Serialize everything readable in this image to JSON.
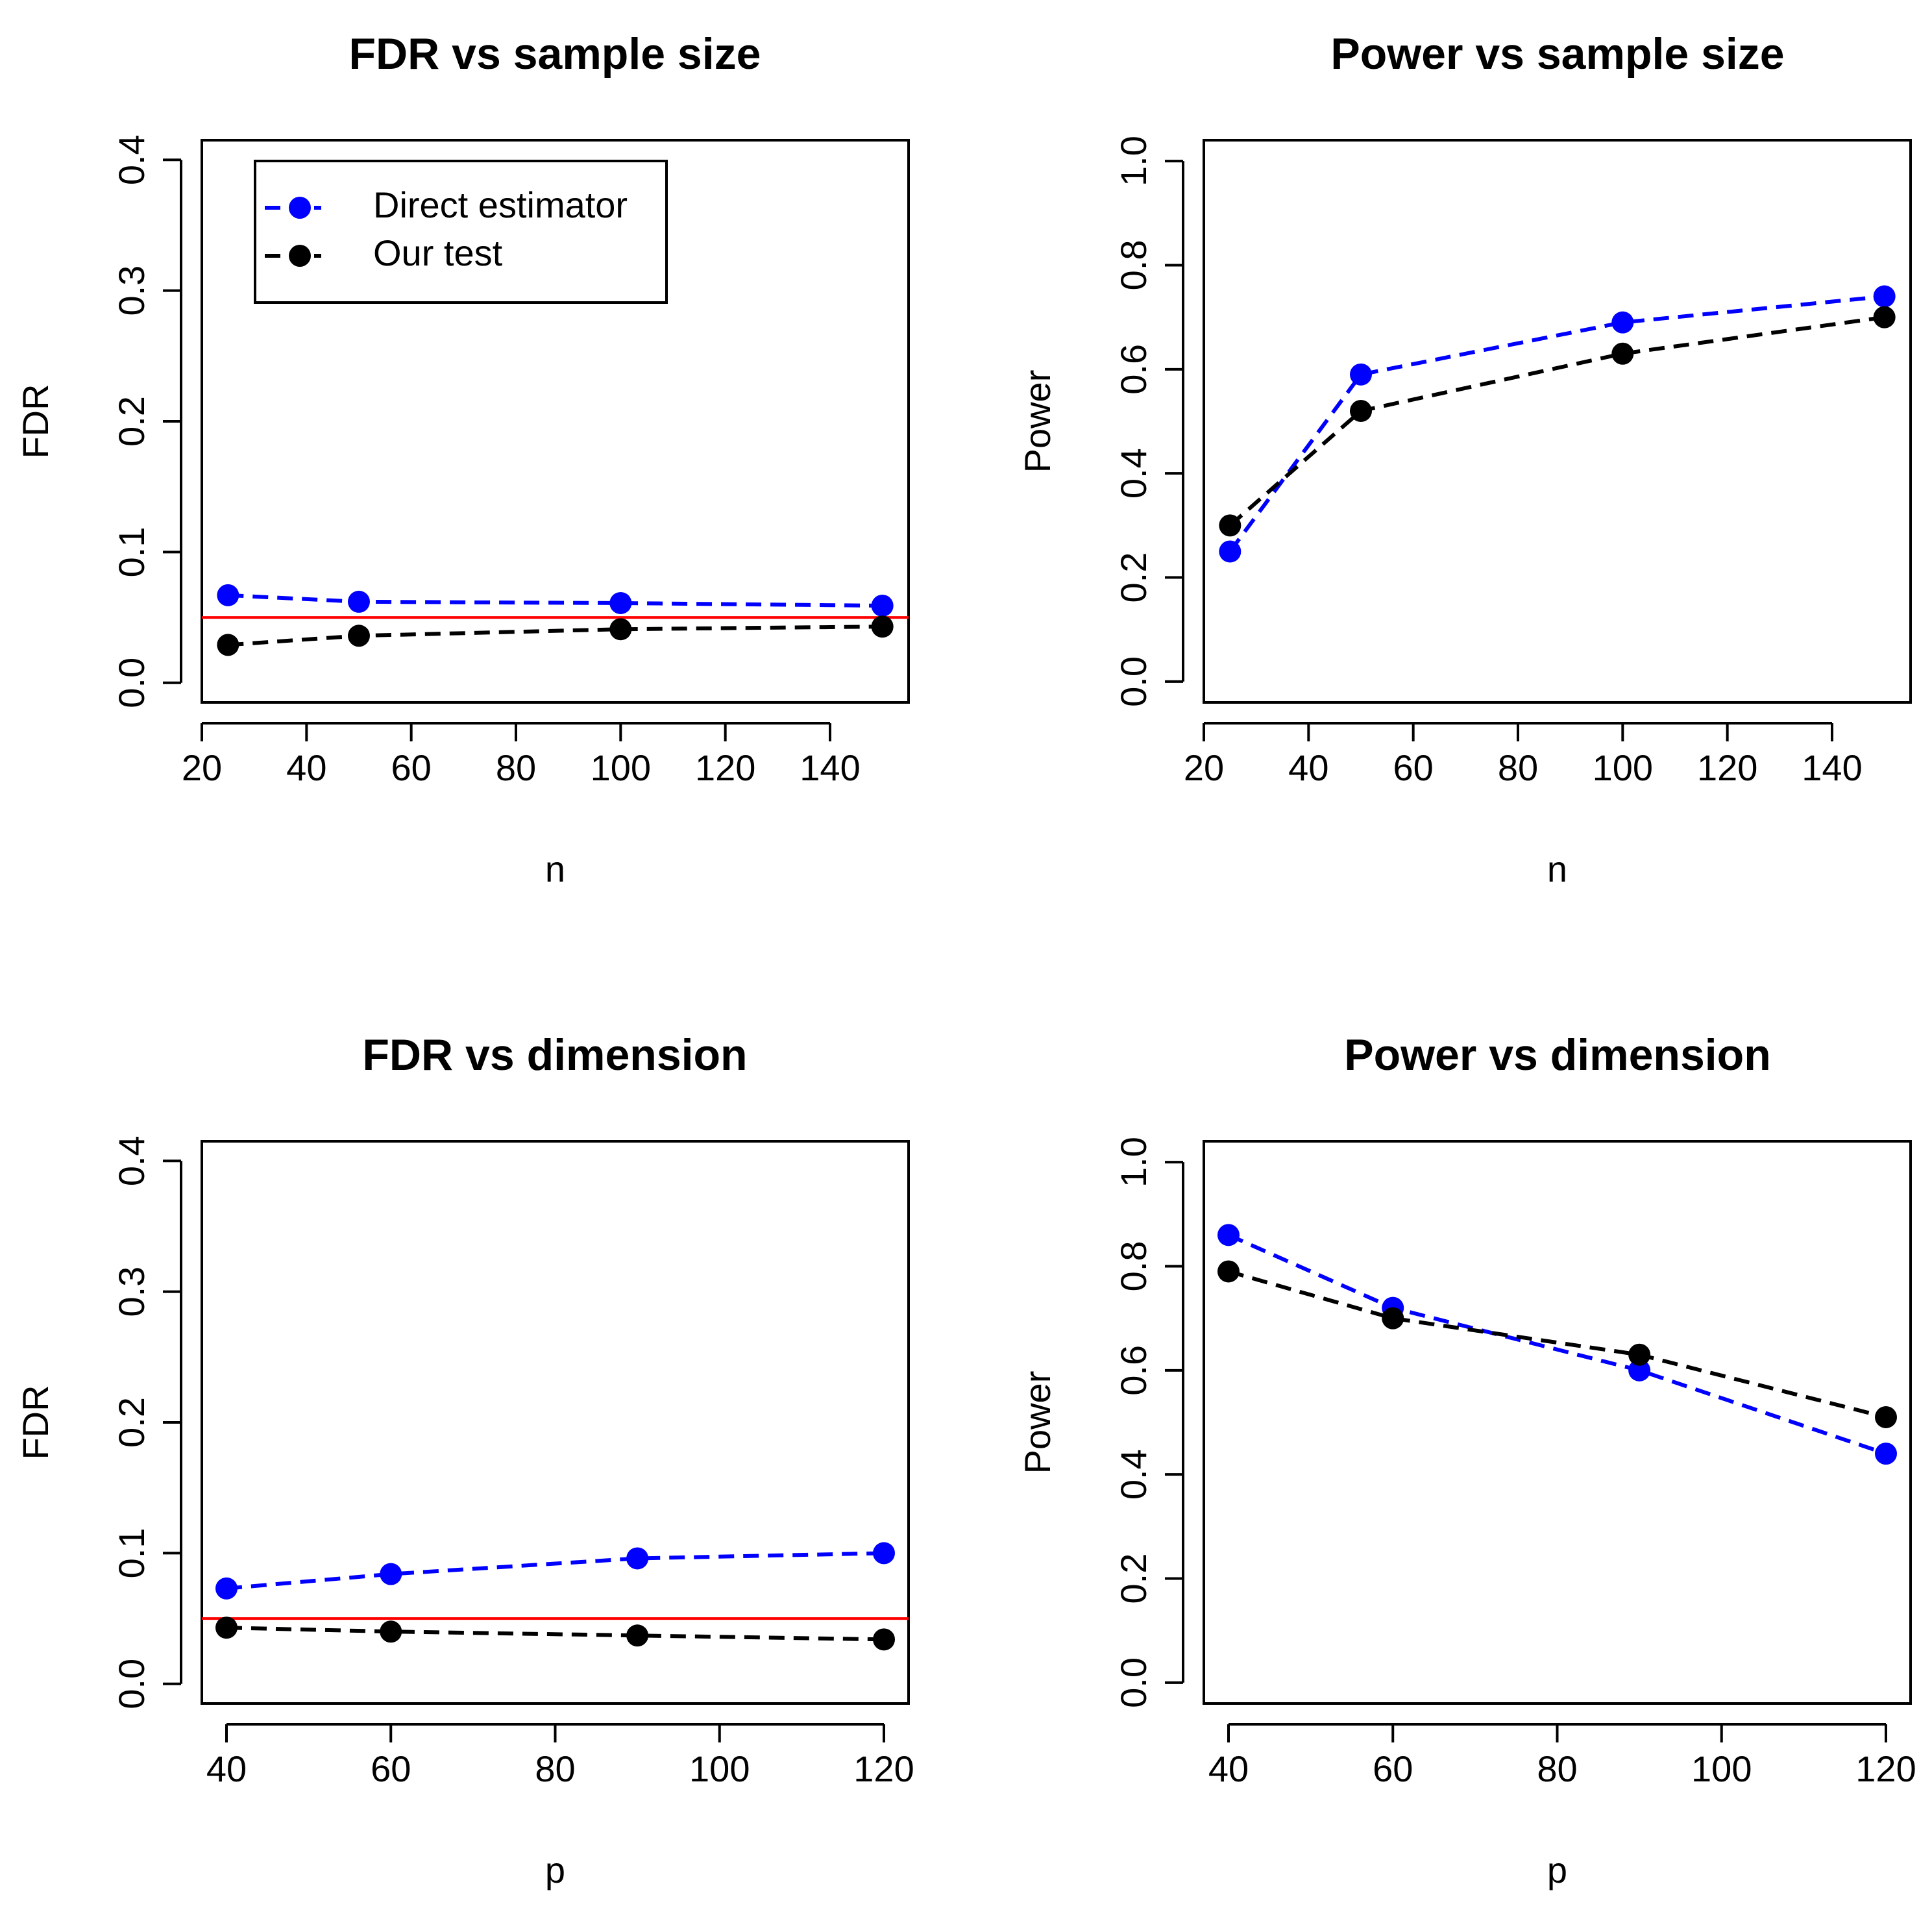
{
  "chart_data": [
    {
      "type": "line",
      "title": "FDR vs sample size",
      "xlabel": "n",
      "ylabel": "FDR",
      "xticks": [
        20,
        40,
        60,
        80,
        100,
        120,
        140
      ],
      "yticks": [
        0.0,
        0.1,
        0.2,
        0.3,
        0.4
      ],
      "yticklabels": [
        "0.0",
        "0.1",
        "0.2",
        "0.3",
        "0.4"
      ],
      "xlim": [
        20,
        155
      ],
      "ylim": [
        -0.015,
        0.415
      ],
      "x": [
        25,
        50,
        100,
        150
      ],
      "series": [
        {
          "name": "Direct estimator",
          "color": "#0000ff",
          "values": [
            0.067,
            0.062,
            0.061,
            0.059
          ]
        },
        {
          "name": "Our test",
          "color": "#000000",
          "values": [
            0.029,
            0.036,
            0.041,
            0.043
          ]
        }
      ],
      "reference_line": {
        "y": 0.05,
        "color": "#ff0000"
      },
      "legend": {
        "position": "top-left",
        "entries": [
          "Direct estimator",
          "Our test"
        ]
      },
      "grid": false
    },
    {
      "type": "line",
      "title": "Power vs sample size",
      "xlabel": "n",
      "ylabel": "Power",
      "xticks": [
        20,
        40,
        60,
        80,
        100,
        120,
        140
      ],
      "yticks": [
        0.0,
        0.2,
        0.4,
        0.6,
        0.8,
        1.0
      ],
      "yticklabels": [
        "0.0",
        "0.2",
        "0.4",
        "0.6",
        "0.8",
        "1.0"
      ],
      "xlim": [
        20,
        155
      ],
      "ylim": [
        -0.04,
        1.04
      ],
      "x": [
        25,
        50,
        100,
        150
      ],
      "series": [
        {
          "name": "Direct estimator",
          "color": "#0000ff",
          "values": [
            0.25,
            0.59,
            0.69,
            0.74
          ]
        },
        {
          "name": "Our test",
          "color": "#000000",
          "values": [
            0.3,
            0.52,
            0.63,
            0.7
          ]
        }
      ],
      "grid": false
    },
    {
      "type": "line",
      "title": "FDR vs dimension",
      "xlabel": "p",
      "ylabel": "FDR",
      "xticks": [
        40,
        60,
        80,
        100,
        120
      ],
      "yticks": [
        0.0,
        0.1,
        0.2,
        0.3,
        0.4
      ],
      "yticklabels": [
        "0.0",
        "0.1",
        "0.2",
        "0.3",
        "0.4"
      ],
      "xlim": [
        37,
        123
      ],
      "ylim": [
        -0.015,
        0.415
      ],
      "x": [
        40,
        60,
        90,
        120
      ],
      "series": [
        {
          "name": "Direct estimator",
          "color": "#0000ff",
          "values": [
            0.073,
            0.084,
            0.096,
            0.1
          ]
        },
        {
          "name": "Our test",
          "color": "#000000",
          "values": [
            0.043,
            0.04,
            0.037,
            0.034
          ]
        }
      ],
      "reference_line": {
        "y": 0.05,
        "color": "#ff0000"
      },
      "grid": false
    },
    {
      "type": "line",
      "title": "Power vs dimension",
      "xlabel": "p",
      "ylabel": "Power",
      "xticks": [
        40,
        60,
        80,
        100,
        120
      ],
      "yticks": [
        0.0,
        0.2,
        0.4,
        0.6,
        0.8,
        1.0
      ],
      "yticklabels": [
        "0.0",
        "0.2",
        "0.4",
        "0.6",
        "0.8",
        "1.0"
      ],
      "xlim": [
        37,
        123
      ],
      "ylim": [
        -0.04,
        1.04
      ],
      "x": [
        40,
        60,
        90,
        120
      ],
      "series": [
        {
          "name": "Direct estimator",
          "color": "#0000ff",
          "values": [
            0.86,
            0.72,
            0.6,
            0.44
          ]
        },
        {
          "name": "Our test",
          "color": "#000000",
          "values": [
            0.79,
            0.7,
            0.63,
            0.51
          ]
        }
      ],
      "grid": false
    }
  ]
}
